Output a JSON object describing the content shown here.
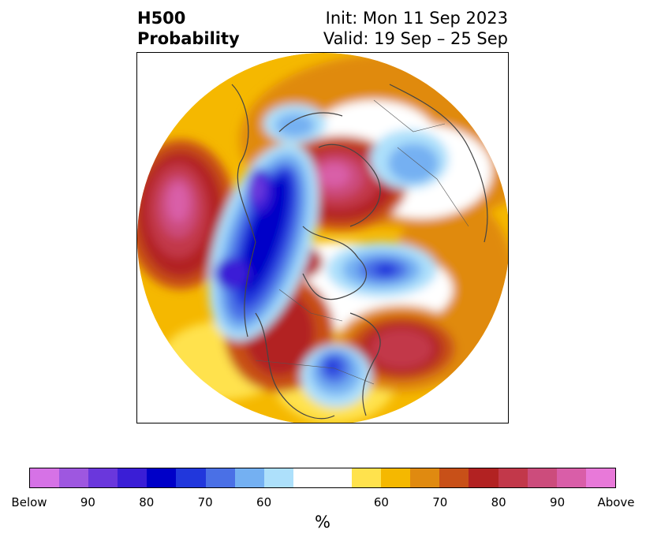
{
  "header": {
    "variable": "H500",
    "product": "Probability",
    "init": "Init: Mon 11 Sep 2023",
    "valid": "Valid: 19 Sep – 25 Sep"
  },
  "colorbar": {
    "unit": "%",
    "colors": [
      "#d672e6",
      "#9e57e0",
      "#6a37dc",
      "#3a1ed6",
      "#0000c8",
      "#2137dc",
      "#4a70e6",
      "#74b0f2",
      "#ade0fb",
      "#ffffff",
      "#ffffff",
      "#ffe24d",
      "#f5b800",
      "#e08a10",
      "#c85018",
      "#b22222",
      "#c2384a",
      "#cc4c7c",
      "#d95ea8",
      "#e879d9"
    ],
    "ticks": [
      "Below",
      "90",
      "80",
      "70",
      "60",
      "60",
      "70",
      "80",
      "90",
      "Above"
    ]
  },
  "map": {
    "colors": {
      "above_1": "#ffe24d",
      "above_2": "#f5b800",
      "above_3": "#e08a10",
      "above_4": "#c85018",
      "above_5": "#b22222",
      "above_6": "#c2384a",
      "above_7": "#cc4c7c",
      "above_8": "#d95ea8",
      "below_1": "#ade0fb",
      "below_2": "#74b0f2",
      "below_3": "#4a70e6",
      "below_4": "#2137dc",
      "below_5": "#0000c8",
      "below_6": "#3a1ed6",
      "below_7": "#6a37dc",
      "coastline": "#444444"
    }
  }
}
